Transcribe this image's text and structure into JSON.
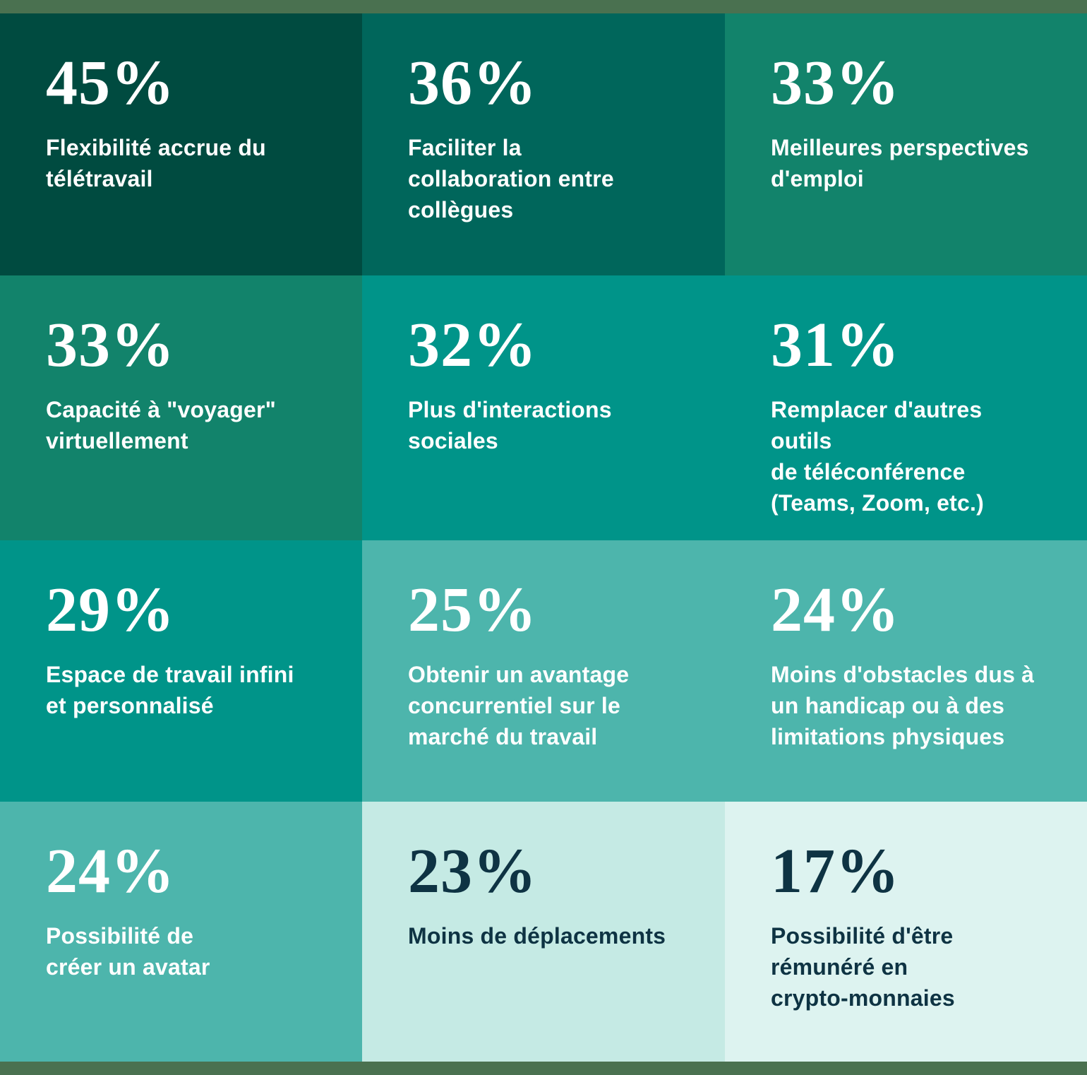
{
  "page": {
    "frame_color": "#4A7150"
  },
  "grid": {
    "tiles": [
      {
        "value": "45%",
        "label": "Flexibilité accrue du\ntélétravail",
        "bg": "#004B40",
        "fg": "#FFFFFF"
      },
      {
        "value": "36%",
        "label": "Faciliter la\ncollaboration entre\ncollègues",
        "bg": "#00665B",
        "fg": "#FFFFFF"
      },
      {
        "value": "33%",
        "label": "Meilleures perspectives\nd'emploi",
        "bg": "#12836B",
        "fg": "#FFFFFF"
      },
      {
        "value": "33%",
        "label": "Capacité à \"voyager\"\nvirtuellement",
        "bg": "#12836B",
        "fg": "#FFFFFF"
      },
      {
        "value": "32%",
        "label": "Plus d'interactions\nsociales",
        "bg": "#009489",
        "fg": "#FFFFFF"
      },
      {
        "value": "31%",
        "label": "Remplacer d'autres outils\nde téléconférence\n(Teams, Zoom, etc.)",
        "bg": "#009489",
        "fg": "#FFFFFF"
      },
      {
        "value": "29%",
        "label": "Espace de travail infini\net personnalisé",
        "bg": "#009489",
        "fg": "#FFFFFF"
      },
      {
        "value": "25%",
        "label": "Obtenir un avantage\nconcurrentiel sur le\nmarché du travail",
        "bg": "#4DB5AC",
        "fg": "#FFFFFF"
      },
      {
        "value": "24%",
        "label": "Moins d'obstacles dus à\nun handicap ou à des\nlimitations physiques",
        "bg": "#4DB5AC",
        "fg": "#FFFFFF"
      },
      {
        "value": "24%",
        "label": "Possibilité de\ncréer un avatar",
        "bg": "#4DB5AC",
        "fg": "#FFFFFF"
      },
      {
        "value": "23%",
        "label": "Moins de déplacements",
        "bg": "#C5EAE4",
        "fg": "#0E3343"
      },
      {
        "value": "17%",
        "label": "Possibilité d'être\nrémunéré en\ncrypto-monnaies",
        "bg": "#DDF3F0",
        "fg": "#0E3343"
      }
    ]
  },
  "chart_data": {
    "type": "table",
    "title": "",
    "unit": "%",
    "categories": [
      "Flexibilité accrue du télétravail",
      "Faciliter la collaboration entre collègues",
      "Meilleures perspectives d'emploi",
      "Capacité à \"voyager\" virtuellement",
      "Plus d'interactions sociales",
      "Remplacer d'autres outils de téléconférence (Teams, Zoom, etc.)",
      "Espace de travail infini et personnalisé",
      "Obtenir un avantage concurrentiel sur le marché du travail",
      "Moins d'obstacles dus à un handicap ou à des limitations physiques",
      "Possibilité de créer un avatar",
      "Moins de déplacements",
      "Possibilité d'être rémunéré en crypto-monnaies"
    ],
    "values": [
      45,
      36,
      33,
      33,
      32,
      31,
      29,
      25,
      24,
      24,
      23,
      17
    ],
    "layout": "4x3 tile grid, anti-diagonal color ramp from dark green (top-left) to pale mint (bottom-right), thin sage strips at top and bottom edges"
  }
}
